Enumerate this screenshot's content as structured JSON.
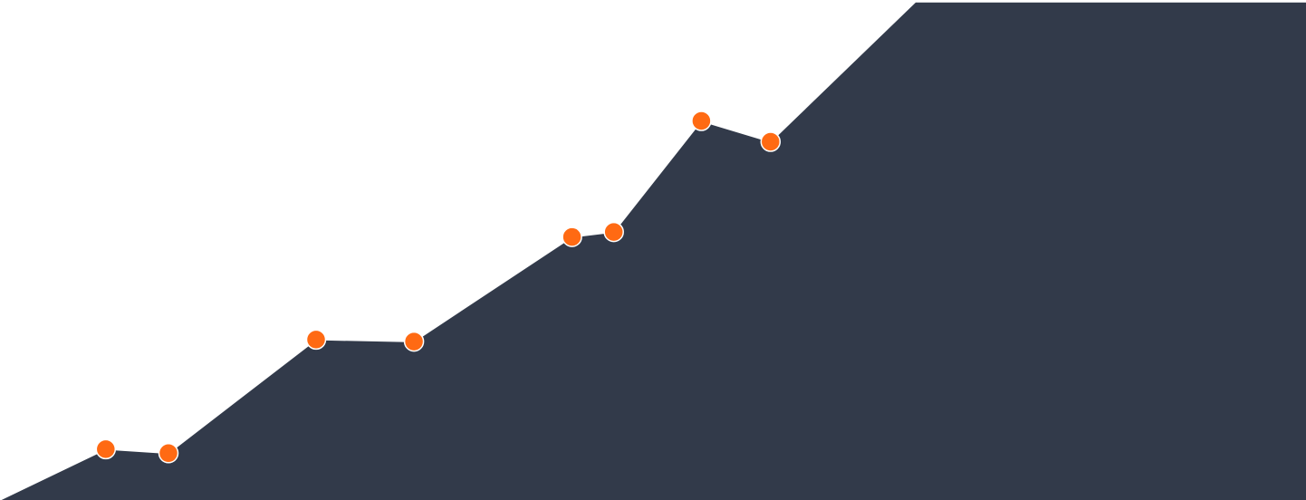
{
  "chart_data": {
    "type": "area",
    "title": "",
    "xlabel": "",
    "ylabel": "",
    "grid": false,
    "legend": "none",
    "xlim": [
      0,
      100
    ],
    "ylim": [
      0,
      100
    ],
    "colors": {
      "area_fill": "#323a4a",
      "marker_fill": "#ff6a13",
      "marker_stroke": "#ffffff",
      "background": "#ffffff"
    },
    "series": [
      {
        "x": [
          0,
          8.1,
          12.9,
          24.2,
          31.7,
          43.8,
          47.0,
          53.7,
          59.0,
          70.1,
          100
        ],
        "y": [
          0,
          10.2,
          9.4,
          32.2,
          31.8,
          52.8,
          53.8,
          76.1,
          71.9,
          100,
          100
        ]
      }
    ],
    "markers": {
      "x": [
        8.1,
        12.9,
        24.2,
        31.7,
        43.8,
        47.0,
        53.7,
        59.0
      ],
      "y": [
        10.2,
        9.4,
        32.2,
        31.8,
        52.8,
        53.8,
        76.1,
        71.9
      ]
    }
  }
}
